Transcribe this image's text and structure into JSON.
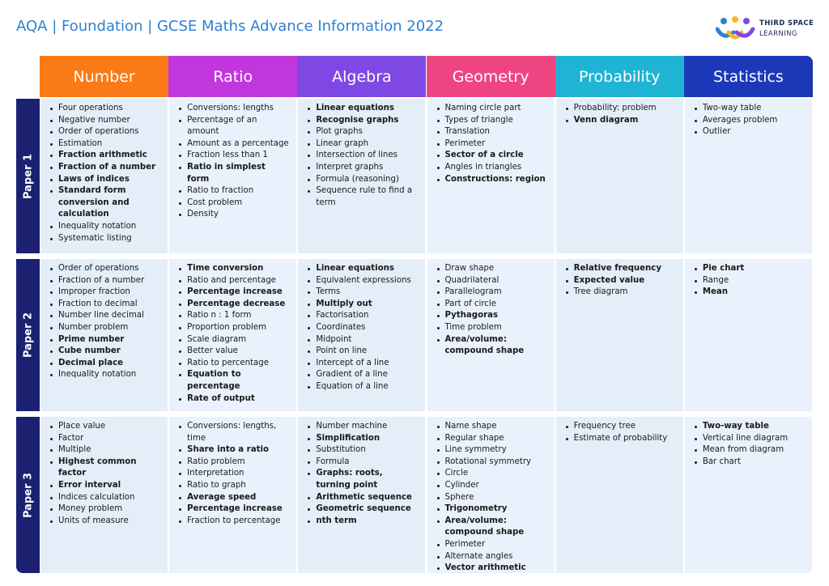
{
  "header": {
    "title": "AQA | Foundation | GCSE Maths Advance Information 2022"
  },
  "logo": {
    "line1": "THIRD SPACE",
    "line2": "LEARNING"
  },
  "table": {
    "columns": [
      {
        "label": "Number",
        "color": "#f97a17"
      },
      {
        "label": "Ratio",
        "color": "#c236de"
      },
      {
        "label": "Algebra",
        "color": "#7f48e4"
      },
      {
        "label": "Geometry",
        "color": "#ee4582"
      },
      {
        "label": "Probability",
        "color": "#1fb4d3"
      },
      {
        "label": "Statistics",
        "color": "#1c38b9"
      }
    ],
    "rows": [
      {
        "label": "Paper 1",
        "cells": [
          [
            {
              "text": "Four operations",
              "bold": false
            },
            {
              "text": "Negative number",
              "bold": false
            },
            {
              "text": "Order of operations",
              "bold": false
            },
            {
              "text": "Estimation",
              "bold": false
            },
            {
              "text": "Fraction arithmetic",
              "bold": true
            },
            {
              "text": "Fraction of a number",
              "bold": true
            },
            {
              "text": "Laws of indices",
              "bold": true
            },
            {
              "text": "Standard form conversion and calculation",
              "bold": true
            },
            {
              "text": "Inequality notation",
              "bold": false
            },
            {
              "text": "Systematic listing",
              "bold": false
            }
          ],
          [
            {
              "text": "Conversions: lengths",
              "bold": false
            },
            {
              "text": "Percentage of an amount",
              "bold": false
            },
            {
              "text": "Amount as a percentage",
              "bold": false
            },
            {
              "text": "Fraction less than 1",
              "bold": false
            },
            {
              "text": "Ratio in simplest form",
              "bold": true
            },
            {
              "text": "Ratio to fraction",
              "bold": false
            },
            {
              "text": "Cost problem",
              "bold": false
            },
            {
              "text": "Density",
              "bold": false
            }
          ],
          [
            {
              "text": "Linear equations",
              "bold": true
            },
            {
              "text": "Recognise graphs",
              "bold": true
            },
            {
              "text": "Plot graphs",
              "bold": false
            },
            {
              "text": "Linear graph",
              "bold": false
            },
            {
              "text": "Intersection of lines",
              "bold": false
            },
            {
              "text": "Interpret graphs",
              "bold": false
            },
            {
              "text": "Formula (reasoning)",
              "bold": false
            },
            {
              "text": "Sequence rule to find a term",
              "bold": false
            }
          ],
          [
            {
              "text": "Naming circle part",
              "bold": false
            },
            {
              "text": "Types of triangle",
              "bold": false
            },
            {
              "text": "Translation",
              "bold": false
            },
            {
              "text": "Perimeter",
              "bold": false
            },
            {
              "text": "Sector of a circle",
              "bold": true
            },
            {
              "text": "Angles in triangles",
              "bold": false
            },
            {
              "text": "Constructions: region",
              "bold": true
            }
          ],
          [
            {
              "text": "Probability: problem",
              "bold": false
            },
            {
              "text": "Venn diagram",
              "bold": true
            }
          ],
          [
            {
              "text": "Two-way table",
              "bold": false
            },
            {
              "text": "Averages problem",
              "bold": false
            },
            {
              "text": "Outlier",
              "bold": false
            }
          ]
        ]
      },
      {
        "label": "Paper 2",
        "cells": [
          [
            {
              "text": "Order of operations",
              "bold": false
            },
            {
              "text": "Fraction of a number",
              "bold": false
            },
            {
              "text": "Improper fraction",
              "bold": false
            },
            {
              "text": "Fraction to decimal",
              "bold": false
            },
            {
              "text": "Number line decimal",
              "bold": false
            },
            {
              "text": "Number problem",
              "bold": false
            },
            {
              "text": "Prime number",
              "bold": true
            },
            {
              "text": "Cube number",
              "bold": true
            },
            {
              "text": "Decimal place",
              "bold": true
            },
            {
              "text": "Inequality notation",
              "bold": false
            }
          ],
          [
            {
              "text": "Time conversion",
              "bold": true
            },
            {
              "text": "Ratio and percentage",
              "bold": false
            },
            {
              "text": "Percentage increase",
              "bold": true
            },
            {
              "text": "Percentage decrease",
              "bold": true
            },
            {
              "text": "Ratio n : 1 form",
              "bold": false
            },
            {
              "text": "Proportion problem",
              "bold": false
            },
            {
              "text": "Scale diagram",
              "bold": false
            },
            {
              "text": "Better value",
              "bold": false
            },
            {
              "text": "Ratio to percentage",
              "bold": false
            },
            {
              "text": "Equation to percentage",
              "bold": true
            },
            {
              "text": "Rate of output",
              "bold": true
            }
          ],
          [
            {
              "text": "Linear equations",
              "bold": true
            },
            {
              "text": "Equivalent expressions",
              "bold": false
            },
            {
              "text": "Terms",
              "bold": false
            },
            {
              "text": "Multiply out",
              "bold": true
            },
            {
              "text": "Factorisation",
              "bold": false
            },
            {
              "text": "Coordinates",
              "bold": false
            },
            {
              "text": "Midpoint",
              "bold": false
            },
            {
              "text": "Point on line",
              "bold": false
            },
            {
              "text": "Intercept of a line",
              "bold": false
            },
            {
              "text": "Gradient of a line",
              "bold": false
            },
            {
              "text": "Equation of a line",
              "bold": false
            }
          ],
          [
            {
              "text": "Draw shape",
              "bold": false
            },
            {
              "text": "Quadrilateral",
              "bold": false
            },
            {
              "text": "Parallelogram",
              "bold": false
            },
            {
              "text": "Part of circle",
              "bold": false
            },
            {
              "text": "Pythagoras",
              "bold": true
            },
            {
              "text": "Time problem",
              "bold": false
            },
            {
              "text": "Area/volume: compound shape",
              "bold": true
            }
          ],
          [
            {
              "text": "Relative frequency",
              "bold": true
            },
            {
              "text": "Expected value",
              "bold": true
            },
            {
              "text": "Tree diagram",
              "bold": false
            }
          ],
          [
            {
              "text": "Pie chart",
              "bold": true
            },
            {
              "text": "Range",
              "bold": false
            },
            {
              "text": "Mean",
              "bold": true
            }
          ]
        ]
      },
      {
        "label": "Paper 3",
        "cells": [
          [
            {
              "text": "Place value",
              "bold": false
            },
            {
              "text": "Factor",
              "bold": false
            },
            {
              "text": "Multiple",
              "bold": false
            },
            {
              "text": "Highest common factor",
              "bold": true
            },
            {
              "text": "Error interval",
              "bold": true
            },
            {
              "text": "Indices calculation",
              "bold": false
            },
            {
              "text": "Money problem",
              "bold": false
            },
            {
              "text": "Units of measure",
              "bold": false
            }
          ],
          [
            {
              "text": "Conversions: lengths, time",
              "bold": false
            },
            {
              "text": "Share into a ratio",
              "bold": true
            },
            {
              "text": "Ratio problem",
              "bold": false
            },
            {
              "text": "Interpretation",
              "bold": false
            },
            {
              "text": "Ratio to graph",
              "bold": false
            },
            {
              "text": "Average speed",
              "bold": true
            },
            {
              "text": "Percentage increase",
              "bold": true
            },
            {
              "text": "Fraction to percentage",
              "bold": false
            }
          ],
          [
            {
              "text": "Number machine",
              "bold": false
            },
            {
              "text": "Simplification",
              "bold": true
            },
            {
              "text": "Substitution",
              "bold": false
            },
            {
              "text": "Formula",
              "bold": false
            },
            {
              "text": "Graphs: roots, turning point",
              "bold": true
            },
            {
              "text": "Arithmetic sequence",
              "bold": true
            },
            {
              "text": "Geometric sequence",
              "bold": true
            },
            {
              "text": "nth term",
              "bold": true
            }
          ],
          [
            {
              "text": "Name shape",
              "bold": false
            },
            {
              "text": "Regular shape",
              "bold": false
            },
            {
              "text": "Line symmetry",
              "bold": false
            },
            {
              "text": "Rotational symmetry",
              "bold": false
            },
            {
              "text": "Circle",
              "bold": false
            },
            {
              "text": "Cylinder",
              "bold": false
            },
            {
              "text": "Sphere",
              "bold": false
            },
            {
              "text": "Trigonometry",
              "bold": true
            },
            {
              "text": "Area/volume: compound shape",
              "bold": true
            },
            {
              "text": "Perimeter",
              "bold": false
            },
            {
              "text": "Alternate angles",
              "bold": false
            },
            {
              "text": "Vector arithmetic",
              "bold": true
            }
          ],
          [
            {
              "text": "Frequency tree",
              "bold": false
            },
            {
              "text": "Estimate of probability",
              "bold": false
            }
          ],
          [
            {
              "text": "Two-way table",
              "bold": true
            },
            {
              "text": "Vertical line diagram",
              "bold": false
            },
            {
              "text": "Mean from diagram",
              "bold": false
            },
            {
              "text": "Bar chart",
              "bold": false
            }
          ]
        ]
      }
    ]
  }
}
